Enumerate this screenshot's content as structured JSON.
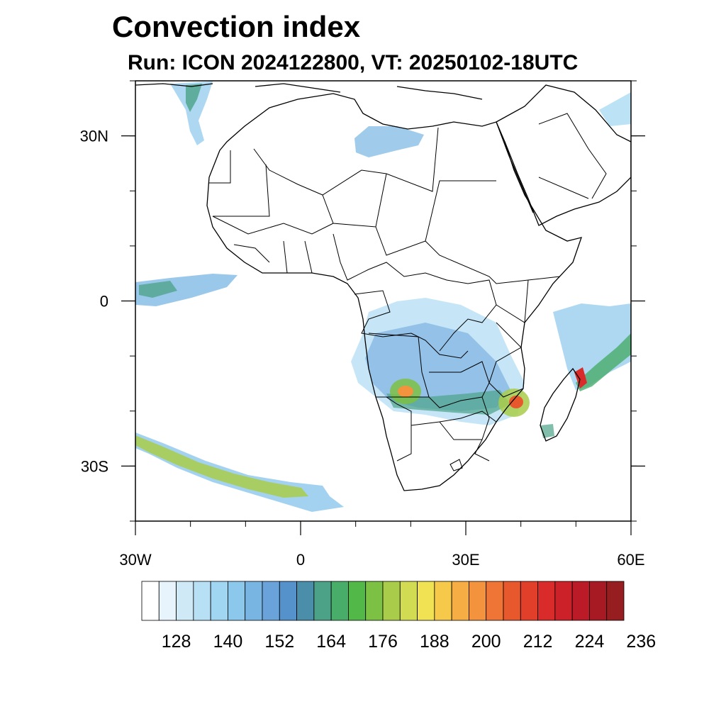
{
  "title": "Convection index",
  "subtitle": "Run: ICON 2024122800,  VT: 20250102-18UTC",
  "map": {
    "lon_range": [
      -30,
      60
    ],
    "lat_range": [
      -40,
      40
    ],
    "lon_ticks": [
      {
        "value": -30,
        "label": "30W"
      },
      {
        "value": 0,
        "label": "0"
      },
      {
        "value": 30,
        "label": "30E"
      },
      {
        "value": 60,
        "label": "60E"
      }
    ],
    "lat_ticks": [
      {
        "value": 30,
        "label": "30N"
      },
      {
        "value": 0,
        "label": "0"
      },
      {
        "value": -30,
        "label": "30S"
      }
    ]
  },
  "colorbar": {
    "colors": [
      "#ffffff",
      "#e8f4fb",
      "#cfe9f7",
      "#b8e0f5",
      "#a0d6f2",
      "#8cc7ec",
      "#78b5e3",
      "#6aa3da",
      "#5591cb",
      "#4a8eaa",
      "#4ba287",
      "#49ad6a",
      "#52b848",
      "#7cc044",
      "#a9cd4a",
      "#d2dc52",
      "#f1e254",
      "#f7c94b",
      "#f6ae44",
      "#f3933e",
      "#ee7536",
      "#e8582d",
      "#e13f2a",
      "#d92b29",
      "#cc2129",
      "#bb1b26",
      "#a81a23",
      "#961d20"
    ],
    "labels": [
      "128",
      "140",
      "152",
      "164",
      "176",
      "188",
      "200",
      "212",
      "224",
      "236"
    ]
  }
}
